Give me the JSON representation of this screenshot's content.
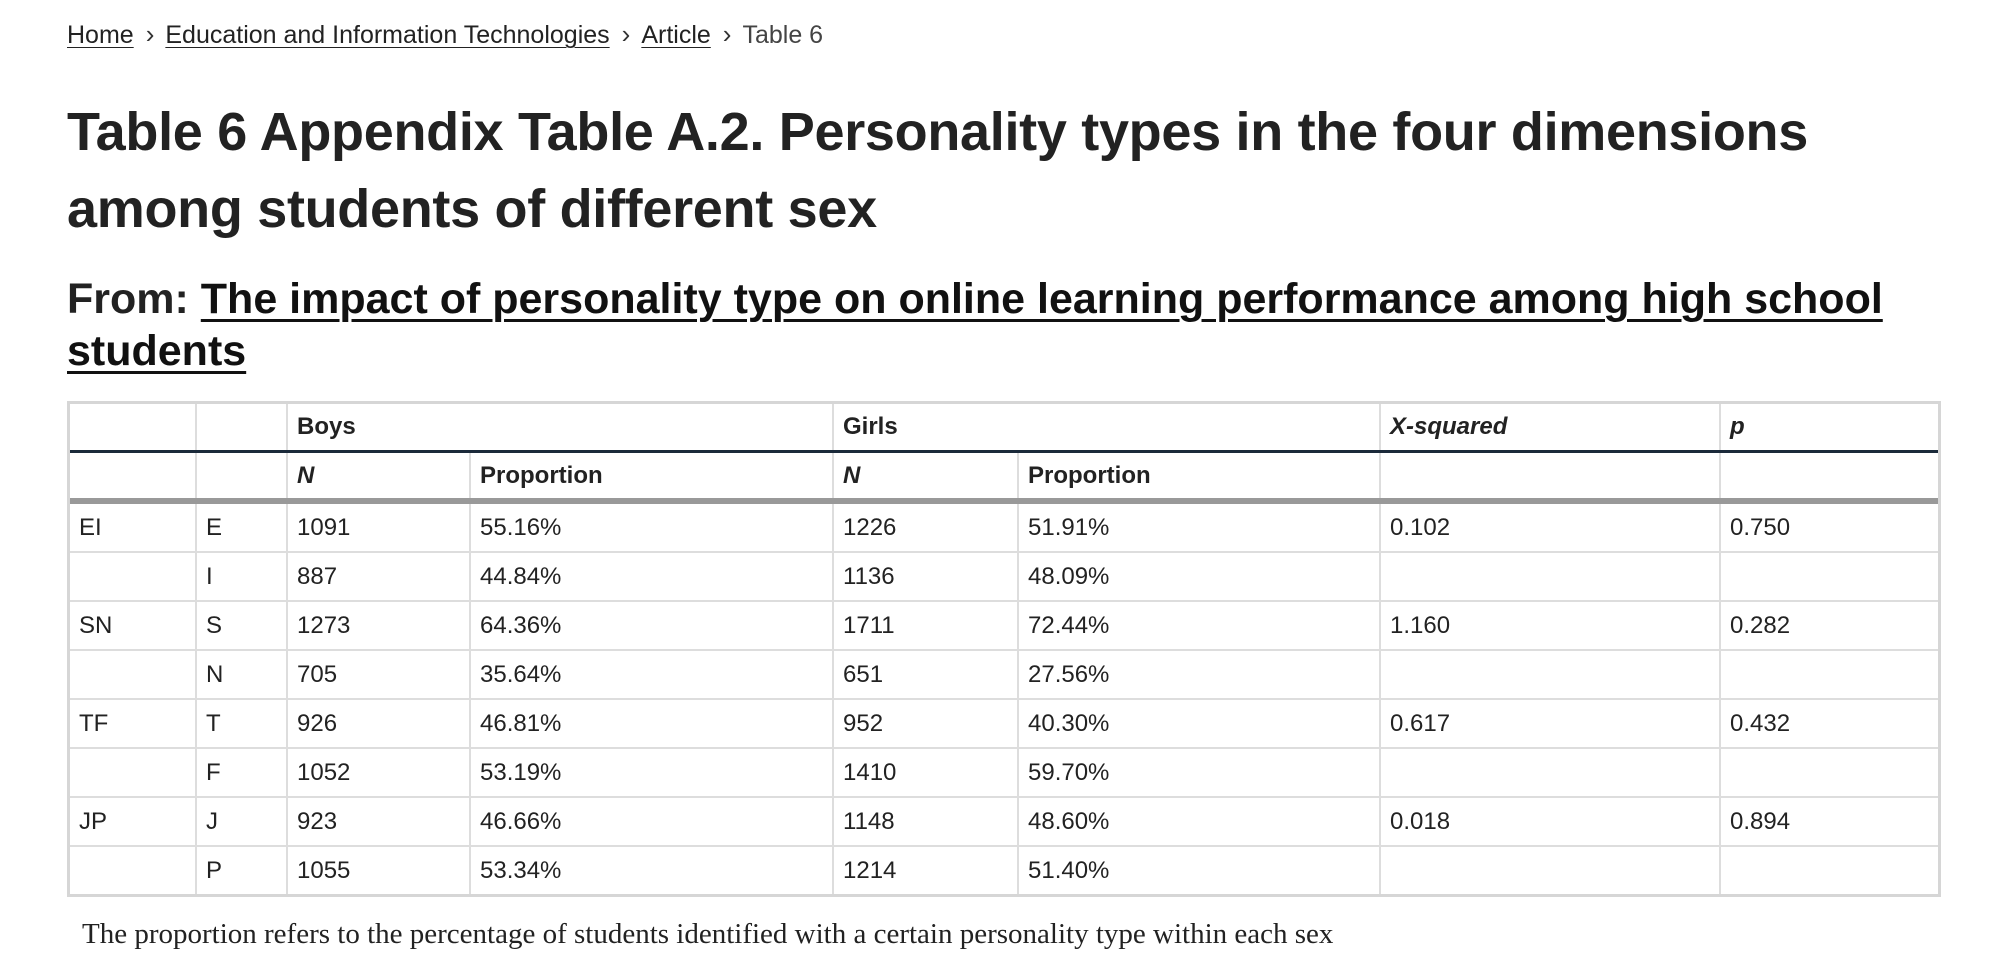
{
  "breadcrumb": {
    "items": [
      "Home",
      "Education and Information Technologies",
      "Article"
    ],
    "current": "Table 6",
    "separator": "›"
  },
  "title": "Table 6 Appendix Table A.2. Personality types in the four dimensions among students of different sex",
  "from": {
    "prefix": "From: ",
    "article_title": "The impact of personality type on online learning performance among high school students"
  },
  "table": {
    "group_headers": [
      "",
      "",
      "Boys",
      "Girls",
      "X-squared",
      "p"
    ],
    "sub_headers": [
      "",
      "",
      "N",
      "Proportion",
      "N",
      "Proportion",
      "",
      ""
    ],
    "rows": [
      [
        "EI",
        "E",
        "1091",
        "55.16%",
        "1226",
        "51.91%",
        "0.102",
        "0.750"
      ],
      [
        "",
        "I",
        "887",
        "44.84%",
        "1136",
        "48.09%",
        "",
        ""
      ],
      [
        "SN",
        "S",
        "1273",
        "64.36%",
        "1711",
        "72.44%",
        "1.160",
        "0.282"
      ],
      [
        "",
        "N",
        "705",
        "35.64%",
        "651",
        "27.56%",
        "",
        ""
      ],
      [
        "TF",
        "T",
        "926",
        "46.81%",
        "952",
        "40.30%",
        "0.617",
        "0.432"
      ],
      [
        "",
        "F",
        "1052",
        "53.19%",
        "1410",
        "59.70%",
        "",
        ""
      ],
      [
        "JP",
        "J",
        "923",
        "46.66%",
        "1148",
        "48.60%",
        "0.018",
        "0.894"
      ],
      [
        "",
        "P",
        "1055",
        "53.34%",
        "1214",
        "51.40%",
        "",
        ""
      ]
    ]
  },
  "footnote": "The proportion refers to the percentage of students identified with a certain personality type within each sex"
}
